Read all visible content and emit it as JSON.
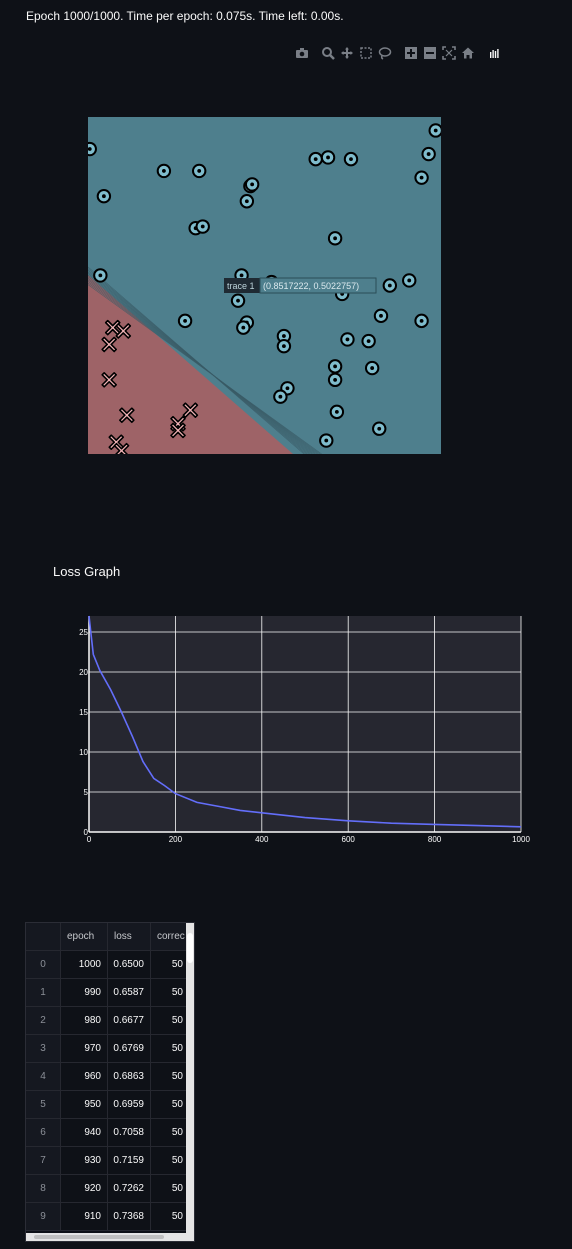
{
  "status_text": "Epoch 1000/1000. Time per epoch: 0.075s. Time left: 0.00s.",
  "modebar_icons": [
    "camera-icon",
    "zoom-icon",
    "pan-icon",
    "box-select-icon",
    "lasso-icon",
    "zoom-in-icon",
    "zoom-out-icon",
    "autoscale-icon",
    "reset-axes-icon",
    "plotly-logo-icon"
  ],
  "colors": {
    "background": "#0e1117",
    "region_blue": "#4e7f8d",
    "region_red": "#9e6367",
    "loss_line": "#636efa",
    "plot_bg": "#262730"
  },
  "tooltip": {
    "name": "trace 1",
    "value": "(0.8517222, 0.5022757)"
  },
  "decision_plot": {
    "blue_points": [
      [
        0.005,
        0.905
      ],
      [
        0.045,
        0.765
      ],
      [
        0.215,
        0.84
      ],
      [
        0.315,
        0.84
      ],
      [
        0.45,
        0.75
      ],
      [
        0.46,
        0.795
      ],
      [
        0.465,
        0.8
      ],
      [
        0.305,
        0.67
      ],
      [
        0.325,
        0.675
      ],
      [
        0.645,
        0.875
      ],
      [
        0.68,
        0.88
      ],
      [
        0.745,
        0.875
      ],
      [
        0.985,
        0.96
      ],
      [
        0.965,
        0.89
      ],
      [
        0.945,
        0.82
      ],
      [
        0.7,
        0.64
      ],
      [
        0.035,
        0.53
      ],
      [
        0.435,
        0.53
      ],
      [
        0.52,
        0.51
      ],
      [
        0.425,
        0.455
      ],
      [
        0.72,
        0.49
      ],
      [
        0.72,
        0.475
      ],
      [
        0.855,
        0.5
      ],
      [
        0.91,
        0.515
      ],
      [
        0.275,
        0.395
      ],
      [
        0.45,
        0.39
      ],
      [
        0.44,
        0.375
      ],
      [
        0.555,
        0.35
      ],
      [
        0.555,
        0.32
      ],
      [
        0.735,
        0.34
      ],
      [
        0.795,
        0.335
      ],
      [
        0.83,
        0.41
      ],
      [
        0.945,
        0.395
      ],
      [
        0.7,
        0.26
      ],
      [
        0.7,
        0.22
      ],
      [
        0.805,
        0.255
      ],
      [
        0.565,
        0.195
      ],
      [
        0.545,
        0.17
      ],
      [
        0.705,
        0.125
      ],
      [
        0.825,
        0.075
      ],
      [
        0.675,
        0.04
      ]
    ],
    "red_points": [
      [
        0.07,
        0.375
      ],
      [
        0.1,
        0.365
      ],
      [
        0.06,
        0.325
      ],
      [
        0.06,
        0.22
      ],
      [
        0.11,
        0.115
      ],
      [
        0.29,
        0.13
      ],
      [
        0.255,
        0.09
      ],
      [
        0.255,
        0.07
      ],
      [
        0.08,
        0.035
      ],
      [
        0.095,
        0.01
      ]
    ]
  },
  "loss_section_title": "Loss Graph",
  "chart_data": {
    "type": "line",
    "title": "",
    "xlabel": "",
    "ylabel": "",
    "xlim": [
      0,
      1000
    ],
    "ylim": [
      0,
      27
    ],
    "x_ticks": [
      0,
      200,
      400,
      600,
      800,
      1000
    ],
    "y_ticks": [
      0,
      5,
      10,
      15,
      20,
      25
    ],
    "grid": true,
    "series": [
      {
        "x": [
          0,
          10,
          25,
          50,
          75,
          100,
          125,
          150,
          175,
          200,
          250,
          300,
          350,
          400,
          500,
          600,
          700,
          800,
          900,
          1000
        ],
        "y": [
          27,
          22.2,
          20.2,
          17.8,
          15.0,
          12.0,
          8.8,
          6.7,
          5.8,
          4.8,
          3.7,
          3.2,
          2.7,
          2.4,
          1.8,
          1.4,
          1.1,
          0.95,
          0.8,
          0.65
        ]
      }
    ]
  },
  "table": {
    "columns": [
      "epoch",
      "loss",
      "correc"
    ],
    "rows": [
      {
        "index": "0",
        "epoch": "1000",
        "loss": "0.6500",
        "correct": "50"
      },
      {
        "index": "1",
        "epoch": "990",
        "loss": "0.6587",
        "correct": "50"
      },
      {
        "index": "2",
        "epoch": "980",
        "loss": "0.6677",
        "correct": "50"
      },
      {
        "index": "3",
        "epoch": "970",
        "loss": "0.6769",
        "correct": "50"
      },
      {
        "index": "4",
        "epoch": "960",
        "loss": "0.6863",
        "correct": "50"
      },
      {
        "index": "5",
        "epoch": "950",
        "loss": "0.6959",
        "correct": "50"
      },
      {
        "index": "6",
        "epoch": "940",
        "loss": "0.7058",
        "correct": "50"
      },
      {
        "index": "7",
        "epoch": "930",
        "loss": "0.7159",
        "correct": "50"
      },
      {
        "index": "8",
        "epoch": "920",
        "loss": "0.7262",
        "correct": "50"
      },
      {
        "index": "9",
        "epoch": "910",
        "loss": "0.7368",
        "correct": "50"
      }
    ]
  }
}
